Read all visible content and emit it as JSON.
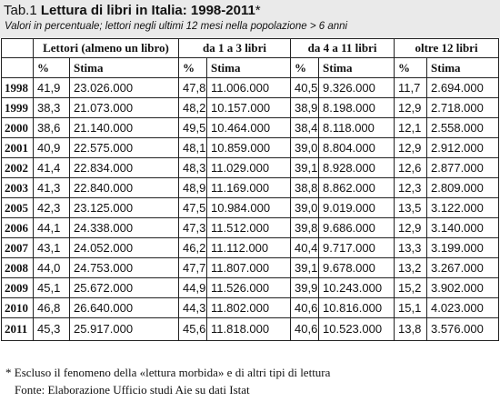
{
  "header": {
    "tab_label": "Tab.1",
    "title": "Lettura di libri in Italia: 1998-2011",
    "title_mark": "*",
    "subtitle": "Valori in percentuale; lettori negli ultimi 12 mesi nella popolazione > 6 anni"
  },
  "table": {
    "groups": [
      "Lettori (almeno un libro)",
      "da 1 a 3 libri",
      "da 4 a 11 libri",
      "oltre 12 libri"
    ],
    "subheaders": [
      "%",
      "Stima",
      "%",
      "Stima",
      "%",
      "Stima",
      "%",
      "Stima"
    ],
    "rows": [
      {
        "year": "1998",
        "cells": [
          "41,9",
          "23.026.000",
          "47,8",
          "11.006.000",
          "40,5",
          "9.326.000",
          "11,7",
          "2.694.000"
        ]
      },
      {
        "year": "1999",
        "cells": [
          "38,3",
          "21.073.000",
          "48,2",
          "10.157.000",
          "38,9",
          "8.198.000",
          "12,9",
          "2.718.000"
        ]
      },
      {
        "year": "2000",
        "cells": [
          "38,6",
          "21.140.000",
          "49,5",
          "10.464.000",
          "38,4",
          "8.118.000",
          "12,1",
          "2.558.000"
        ]
      },
      {
        "year": "2001",
        "cells": [
          "40,9",
          "22.575.000",
          "48,1",
          "10.859.000",
          "39,0",
          "8.804.000",
          "12,9",
          "2.912.000"
        ]
      },
      {
        "year": "2002",
        "cells": [
          "41,4",
          "22.834.000",
          "48,3",
          "11.029.000",
          "39,1",
          "8.928.000",
          "12,6",
          "2.877.000"
        ]
      },
      {
        "year": "2003",
        "cells": [
          "41,3",
          "22.840.000",
          "48,9",
          "11.169.000",
          "38,8",
          "8.862.000",
          "12,3",
          "2.809.000"
        ]
      },
      {
        "year": "2005",
        "cells": [
          "42,3",
          "23.125.000",
          "47,5",
          "10.984.000",
          "39,0",
          "9.019.000",
          "13,5",
          "3.122.000"
        ]
      },
      {
        "year": "2006",
        "cells": [
          "44,1",
          "24.338.000",
          "47,3",
          "11.512.000",
          "39,8",
          "9.686.000",
          "12,9",
          "3.140.000"
        ]
      },
      {
        "year": "2007",
        "cells": [
          "43,1",
          "24.052.000",
          "46,2",
          "11.112.000",
          "40,4",
          "9.717.000",
          "13,3",
          "3.199.000"
        ]
      },
      {
        "year": "2008",
        "cells": [
          "44,0",
          "24.753.000",
          "47,7",
          "11.807.000",
          "39,1",
          "9.678.000",
          "13,2",
          "3.267.000"
        ]
      },
      {
        "year": "2009",
        "cells": [
          "45,1",
          "25.672.000",
          "44,9",
          "11.526.000",
          "39,9",
          "10.243.000",
          "15,2",
          "3.902.000"
        ]
      },
      {
        "year": "2010",
        "cells": [
          "46,8",
          "26.640.000",
          "44,3",
          "11.802.000",
          "40,6",
          "10.816.000",
          "15,1",
          "4.023.000"
        ]
      },
      {
        "year": "2011",
        "cells": [
          "45,3",
          "25.917.000",
          "45,6",
          "11.818.000",
          "40,6",
          "10.523.000",
          "13,8",
          "3.576.000"
        ]
      }
    ]
  },
  "footnote": "* Escluso il fenomeno della «lettura morbida» e di altri tipi di lettura",
  "source": "Fonte: Elaborazione Ufficio studi Aie su dati Istat"
}
